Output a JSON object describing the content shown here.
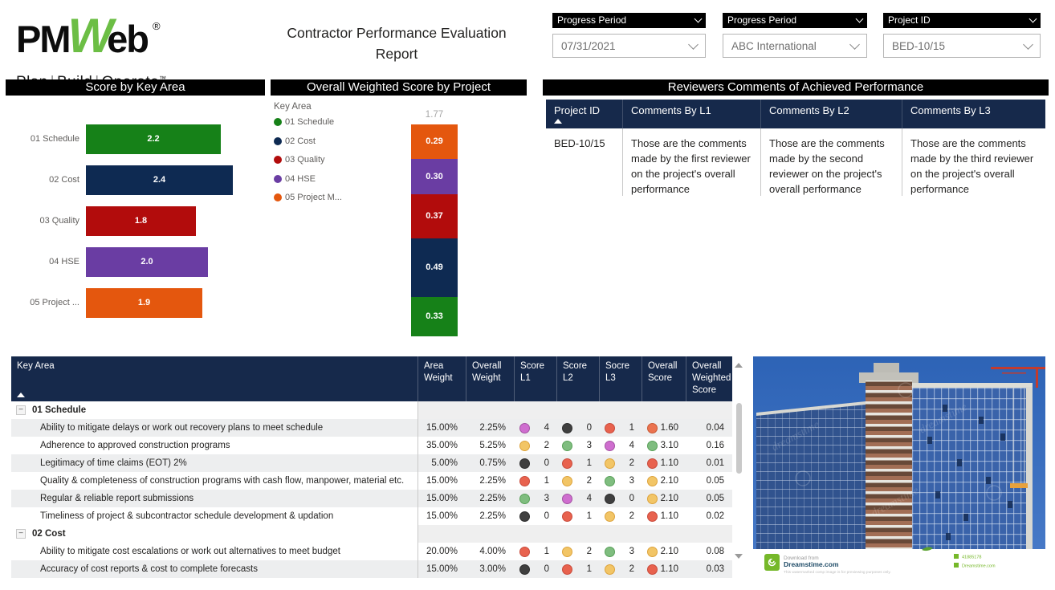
{
  "brand": {
    "logo_pm": "PM",
    "logo_w": "W",
    "logo_eb": "eb",
    "registered": "®",
    "tagline_plan": "Plan",
    "tagline_build": "Build",
    "tagline_operate": "Operate",
    "trademark": "™"
  },
  "report_title": {
    "line1": "Contractor Performance Evaluation",
    "line2": "Report"
  },
  "slicers": [
    {
      "label": "Progress Period",
      "value": "07/31/2021"
    },
    {
      "label": "Progress Period",
      "value": "ABC International"
    },
    {
      "label": "Project ID",
      "value": "BED-10/15"
    }
  ],
  "panel_titles": {
    "score_by_key_area": "Score by Key Area",
    "overall_weighted": "Overall Weighted Score by Project",
    "reviewers": "Reviewers Comments of Achieved Performance"
  },
  "chart_data": [
    {
      "type": "bar",
      "orientation": "horizontal",
      "title": "Score by Key Area",
      "categories": [
        "01 Schedule",
        "02 Cost",
        "03 Quality",
        "04 HSE",
        "05 Project ..."
      ],
      "values": [
        2.2,
        2.4,
        1.8,
        2.0,
        1.9
      ],
      "value_labels": [
        "2.2",
        "2.4",
        "1.8",
        "2.0",
        "1.9"
      ],
      "colors": [
        "#168118",
        "#0e2a52",
        "#b20c0c",
        "#6a3da3",
        "#e4570e"
      ],
      "xlim": [
        0,
        2.4
      ],
      "grid": false,
      "legend_position": "none"
    },
    {
      "type": "bar",
      "subtype": "stacked_column",
      "title": "Overall Weighted Score by Project",
      "legend_title": "Key Area",
      "legend_position": "left",
      "legend": [
        {
          "label": "01 Schedule",
          "color": "#168118"
        },
        {
          "label": "02 Cost",
          "color": "#0e2a52"
        },
        {
          "label": "03 Quality",
          "color": "#b20c0c"
        },
        {
          "label": "04 HSE",
          "color": "#6a3da3"
        },
        {
          "label": "05 Project M...",
          "color": "#e4570e"
        }
      ],
      "total_label": "1.77",
      "ylim": [
        0,
        1.77
      ],
      "segments_top_to_bottom": [
        {
          "label": "05 Project M...",
          "value": 0.29,
          "display": "0.29",
          "color": "#e4570e"
        },
        {
          "label": "04 HSE",
          "value": 0.3,
          "display": "0.30",
          "color": "#6a3da3"
        },
        {
          "label": "03 Quality",
          "value": 0.37,
          "display": "0.37",
          "color": "#b20c0c"
        },
        {
          "label": "02 Cost",
          "value": 0.49,
          "display": "0.49",
          "color": "#0e2a52"
        },
        {
          "label": "01 Schedule",
          "value": 0.33,
          "display": "0.33",
          "color": "#168118"
        }
      ]
    }
  ],
  "reviewers": {
    "columns": [
      "Project ID",
      "Comments By L1",
      "Comments By L2",
      "Comments By L3"
    ],
    "rows": [
      {
        "project_id": "BED-10/15",
        "l1": "Those are the comments made by the first reviewer on the project's overall performance",
        "l2": "Those are the comments made by the second reviewer on the project's overall performance",
        "l3": "Those are the comments made by the third reviewer on the project's overall performance"
      }
    ]
  },
  "matrix": {
    "columns": [
      "Key Area",
      "Area Weight",
      "Overall Weight",
      "Score L1",
      "Score L2",
      "Socre L3",
      "Overall Score",
      "Overall Weighted Score"
    ],
    "dot_colors": {
      "red": "#e8624e",
      "redorange": "#eb7350",
      "yellow": "#f2c566",
      "green": "#7fbd7f",
      "purple": "#cf6ecf",
      "black": "#3f3f3f"
    },
    "dot_borders": {
      "red": "#c94b3c",
      "redorange": "#c95a36",
      "yellow": "#dda33c",
      "green": "#58a058",
      "purple": "#a352a3",
      "black": "#2e2e2e"
    },
    "groups": [
      {
        "label": "01 Schedule",
        "rows": [
          {
            "label": "Ability to mitigate delays or work out recovery plans to meet schedule",
            "area": "15.00%",
            "overall": "2.25%",
            "s1": [
              "purple",
              "4"
            ],
            "s2": [
              "black",
              "0"
            ],
            "s3": [
              "red",
              "1"
            ],
            "score": [
              "redorange",
              "1.60"
            ],
            "weighted": "0.04",
            "shade": true
          },
          {
            "label": "Adherence to approved construction programs",
            "area": "35.00%",
            "overall": "5.25%",
            "s1": [
              "yellow",
              "2"
            ],
            "s2": [
              "green",
              "3"
            ],
            "s3": [
              "purple",
              "4"
            ],
            "score": [
              "green",
              "3.10"
            ],
            "weighted": "0.16",
            "shade": false
          },
          {
            "label": "Legitimacy of time claims (EOT) 2%",
            "area": "5.00%",
            "overall": "0.75%",
            "s1": [
              "black",
              "0"
            ],
            "s2": [
              "red",
              "1"
            ],
            "s3": [
              "yellow",
              "2"
            ],
            "score": [
              "red",
              "1.10"
            ],
            "weighted": "0.01",
            "shade": true
          },
          {
            "label": "Quality & completeness of construction programs with cash flow, manpower, material etc.",
            "area": "15.00%",
            "overall": "2.25%",
            "s1": [
              "red",
              "1"
            ],
            "s2": [
              "yellow",
              "2"
            ],
            "s3": [
              "green",
              "3"
            ],
            "score": [
              "yellow",
              "2.10"
            ],
            "weighted": "0.05",
            "shade": false
          },
          {
            "label": "Regular & reliable report submissions",
            "area": "15.00%",
            "overall": "2.25%",
            "s1": [
              "green",
              "3"
            ],
            "s2": [
              "purple",
              "4"
            ],
            "s3": [
              "black",
              "0"
            ],
            "score": [
              "yellow",
              "2.10"
            ],
            "weighted": "0.05",
            "shade": true
          },
          {
            "label": "Timeliness of project & subcontractor schedule development & updation",
            "area": "15.00%",
            "overall": "2.25%",
            "s1": [
              "black",
              "0"
            ],
            "s2": [
              "red",
              "1"
            ],
            "s3": [
              "yellow",
              "2"
            ],
            "score": [
              "red",
              "1.10"
            ],
            "weighted": "0.02",
            "shade": false
          }
        ]
      },
      {
        "label": "02 Cost",
        "rows": [
          {
            "label": "Ability to mitigate cost escalations or work out alternatives to meet budget",
            "area": "20.00%",
            "overall": "4.00%",
            "s1": [
              "red",
              "1"
            ],
            "s2": [
              "yellow",
              "2"
            ],
            "s3": [
              "green",
              "3"
            ],
            "score": [
              "yellow",
              "2.10"
            ],
            "weighted": "0.08",
            "shade": false
          },
          {
            "label": "Accuracy of cost reports & cost to complete forecasts",
            "area": "15.00%",
            "overall": "3.00%",
            "s1": [
              "black",
              "0"
            ],
            "s2": [
              "red",
              "1"
            ],
            "s3": [
              "yellow",
              "2"
            ],
            "score": [
              "red",
              "1.10"
            ],
            "weighted": "0.03",
            "shade": true
          }
        ]
      }
    ]
  },
  "photo": {
    "watermark": "dreamstime",
    "download_from": "Download from",
    "site": "Dreamstime.com",
    "disclaimer": "This watermarked comp image is for previewing purposes only.",
    "image_id": "41885178",
    "credit": "Dreamstime.com"
  }
}
